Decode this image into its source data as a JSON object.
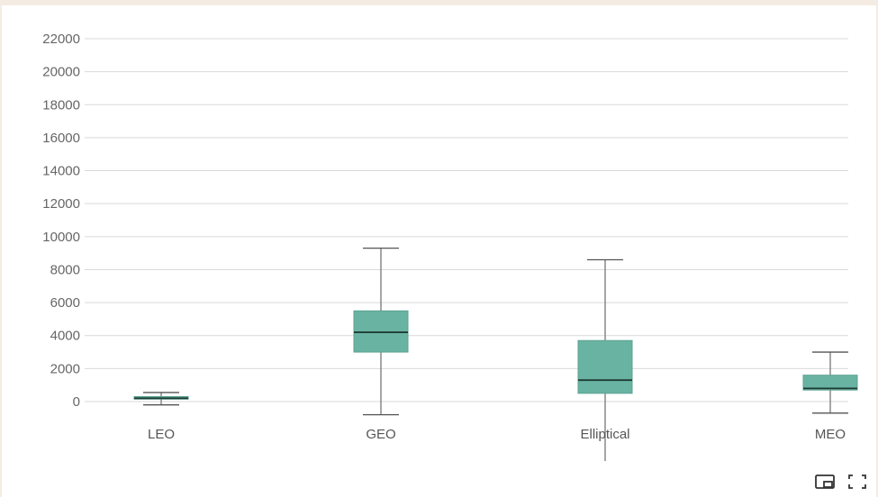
{
  "chart_data": {
    "type": "box",
    "title": "",
    "xlabel": "",
    "ylabel": "",
    "categories": [
      "LEO",
      "GEO",
      "Elliptical",
      "MEO"
    ],
    "y_ticks": [
      "22000",
      "20000",
      "18000",
      "16000",
      "14000",
      "12000",
      "10000",
      "8000",
      "6000",
      "4000",
      "2000",
      "0"
    ],
    "ylim": [
      -800,
      22000
    ],
    "grid": true,
    "box_color": "#69b3a2",
    "series": [
      {
        "min": -200,
        "q1": 150,
        "median": 200,
        "q3": 300,
        "max": 550
      },
      {
        "min": -800,
        "q1": 3000,
        "median": 4200,
        "q3": 5500,
        "max": 9300
      },
      {
        "min": -3700,
        "q1": 500,
        "median": 1300,
        "q3": 3700,
        "max": 8600
      },
      {
        "min": -700,
        "q1": 700,
        "median": 800,
        "q3": 1600,
        "max": 3000
      }
    ]
  },
  "footer": {
    "icons": [
      "picture-in-picture-icon",
      "fullscreen-icon"
    ]
  }
}
